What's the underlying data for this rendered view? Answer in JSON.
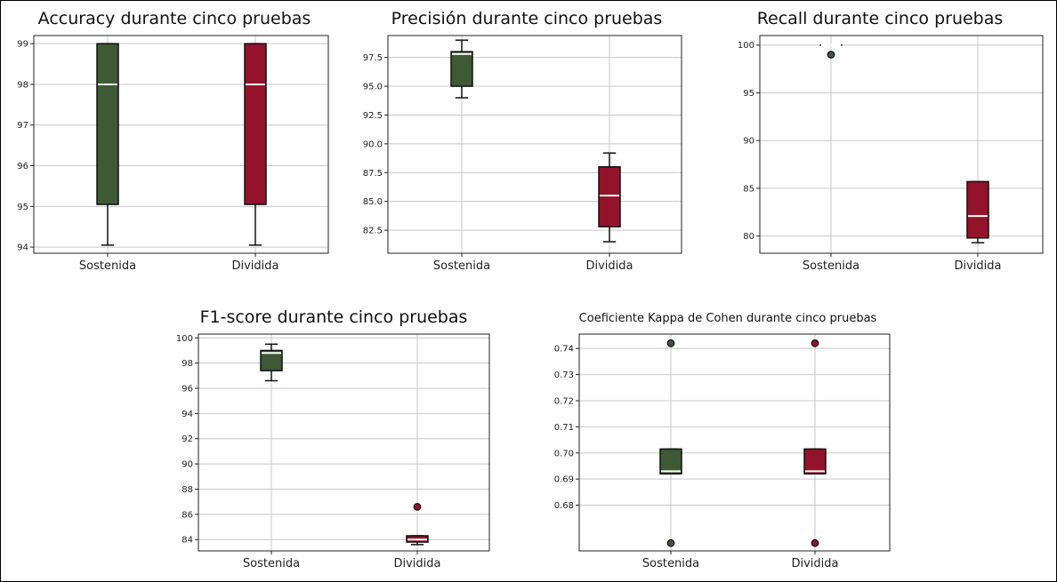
{
  "colors": {
    "sostenida": "#3e5a35",
    "dividida": "#93132a",
    "median": "#ffffff",
    "grid": "#c8c8c8",
    "axis": "#222222"
  },
  "chart_data": [
    {
      "type": "box",
      "title": "Accuracy durante cinco pruebas",
      "categories": [
        "Sostenida",
        "Dividida"
      ],
      "ylim": [
        93.85,
        99.2
      ],
      "yticks": [
        94,
        95,
        96,
        97,
        98,
        99
      ],
      "ytick_labels": [
        "94",
        "95",
        "96",
        "97",
        "98",
        "99"
      ],
      "grid": true,
      "series": [
        {
          "name": "Sostenida",
          "whislo": 94.05,
          "q1": 95.05,
          "med": 98.0,
          "q3": 99.0,
          "whishi": 99.0,
          "fliers": []
        },
        {
          "name": "Dividida",
          "whislo": 94.05,
          "q1": 95.05,
          "med": 98.0,
          "q3": 99.0,
          "whishi": 99.0,
          "fliers": []
        }
      ]
    },
    {
      "type": "box",
      "title": "Precisión durante cinco pruebas",
      "categories": [
        "Sostenida",
        "Dividida"
      ],
      "ylim": [
        80.5,
        99.4
      ],
      "yticks": [
        82.5,
        85.0,
        87.5,
        90.0,
        92.5,
        95.0,
        97.5
      ],
      "ytick_labels": [
        "82.5",
        "85.0",
        "87.5",
        "90.0",
        "92.5",
        "95.0",
        "97.5"
      ],
      "grid": true,
      "series": [
        {
          "name": "Sostenida",
          "whislo": 94.0,
          "q1": 95.0,
          "med": 97.8,
          "q3": 98.0,
          "whishi": 99.0,
          "fliers": []
        },
        {
          "name": "Dividida",
          "whislo": 81.5,
          "q1": 82.8,
          "med": 85.5,
          "q3": 88.0,
          "whishi": 89.2,
          "fliers": []
        }
      ]
    },
    {
      "type": "box",
      "title": "Recall durante cinco pruebas",
      "categories": [
        "Sostenida",
        "Dividida"
      ],
      "ylim": [
        78.2,
        101.0
      ],
      "yticks": [
        80,
        85,
        90,
        95,
        100
      ],
      "ytick_labels": [
        "80",
        "85",
        "90",
        "95",
        "100"
      ],
      "grid": true,
      "series": [
        {
          "name": "Sostenida",
          "whislo": 100.0,
          "q1": 100.0,
          "med": 100.0,
          "q3": 100.0,
          "whishi": 100.0,
          "fliers": [
            99.0
          ]
        },
        {
          "name": "Dividida",
          "whislo": 79.3,
          "q1": 79.8,
          "med": 82.1,
          "q3": 85.7,
          "whishi": 85.7,
          "fliers": []
        }
      ]
    },
    {
      "type": "box",
      "title": "F1-score durante cinco pruebas",
      "categories": [
        "Sostenida",
        "Dividida"
      ],
      "ylim": [
        83.1,
        100.3
      ],
      "yticks": [
        84,
        86,
        88,
        90,
        92,
        94,
        96,
        98,
        100
      ],
      "ytick_labels": [
        "84",
        "86",
        "88",
        "90",
        "92",
        "94",
        "96",
        "98",
        "100"
      ],
      "grid": true,
      "series": [
        {
          "name": "Sostenida",
          "whislo": 96.6,
          "q1": 97.4,
          "med": 98.8,
          "q3": 99.0,
          "whishi": 99.5,
          "fliers": []
        },
        {
          "name": "Dividida",
          "whislo": 83.6,
          "q1": 83.8,
          "med": 84.0,
          "q3": 84.3,
          "whishi": 84.3,
          "fliers": [
            86.6
          ]
        }
      ]
    },
    {
      "type": "box",
      "title": "Coeficiente Kappa de Cohen durante cinco pruebas",
      "categories": [
        "Sostenida",
        "Dividida"
      ],
      "ylim": [
        0.6625,
        0.7455
      ],
      "yticks": [
        0.68,
        0.69,
        0.7,
        0.71,
        0.72,
        0.73,
        0.74
      ],
      "ytick_labels": [
        "0.68",
        "0.69",
        "0.70",
        "0.71",
        "0.72",
        "0.73",
        "0.74"
      ],
      "grid": true,
      "series": [
        {
          "name": "Sostenida",
          "whislo": 0.692,
          "q1": 0.692,
          "med": 0.693,
          "q3": 0.7015,
          "whishi": 0.7015,
          "fliers": [
            0.742,
            0.6655
          ]
        },
        {
          "name": "Dividida",
          "whislo": 0.692,
          "q1": 0.692,
          "med": 0.693,
          "q3": 0.7015,
          "whishi": 0.7015,
          "fliers": [
            0.742,
            0.6655
          ]
        }
      ]
    }
  ]
}
